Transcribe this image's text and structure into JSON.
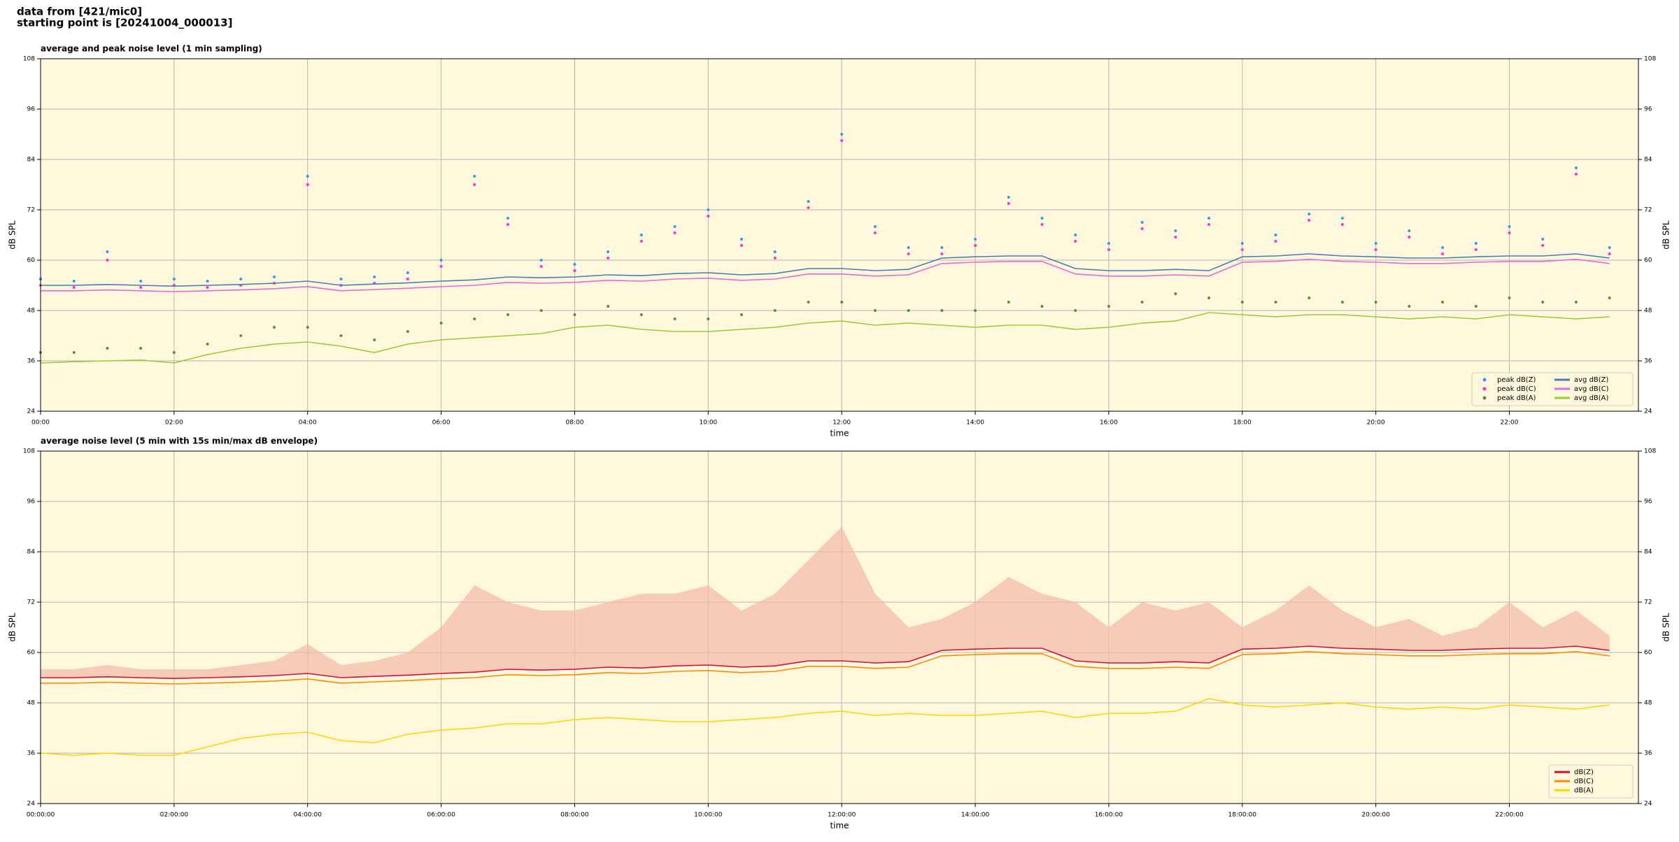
{
  "header": [
    "data from [421/mic0]",
    "starting point is [20241004_000013]"
  ],
  "chart_data": [
    {
      "type": "line",
      "title": "average and peak noise level (1 min sampling)",
      "x_label": "time",
      "y_label": "dB SPL",
      "x": [
        "00:00",
        "00:30",
        "01:00",
        "01:30",
        "02:00",
        "02:30",
        "03:00",
        "03:30",
        "04:00",
        "04:30",
        "05:00",
        "05:30",
        "06:00",
        "06:30",
        "07:00",
        "07:30",
        "08:00",
        "08:30",
        "09:00",
        "09:30",
        "10:00",
        "10:30",
        "11:00",
        "11:30",
        "12:00",
        "12:30",
        "13:00",
        "13:30",
        "14:00",
        "14:30",
        "15:00",
        "15:30",
        "16:00",
        "16:30",
        "17:00",
        "17:30",
        "18:00",
        "18:30",
        "19:00",
        "19:30",
        "20:00",
        "20:30",
        "21:00",
        "21:30",
        "22:00",
        "22:30",
        "23:00",
        "23:30"
      ],
      "xlim": [
        "00:00",
        "23:56"
      ],
      "xticks": [
        "00:00",
        "02:00",
        "04:00",
        "06:00",
        "08:00",
        "10:00",
        "12:00",
        "14:00",
        "16:00",
        "18:00",
        "20:00",
        "22:00"
      ],
      "ylim": [
        24,
        108
      ],
      "yticks": [
        24,
        36,
        48,
        60,
        72,
        84,
        96,
        108
      ],
      "grid": true,
      "legend": "lower right",
      "legend_columns": 2,
      "series": [
        {
          "name": "peak dB(Z)",
          "style": "marker",
          "color": "#3399ee",
          "values": [
            55.5,
            55,
            62,
            55,
            55.5,
            55,
            55.5,
            56,
            80,
            55.5,
            56,
            57,
            60,
            80,
            70,
            60,
            59,
            62,
            66,
            68,
            72,
            65,
            62,
            74,
            90,
            68,
            63,
            63,
            65,
            75,
            70,
            66,
            64,
            69,
            67,
            70,
            64,
            66,
            71,
            70,
            64,
            67,
            63,
            64,
            68,
            65,
            82,
            63
          ]
        },
        {
          "name": "peak dB(C)",
          "style": "marker",
          "color": "#ff33cc",
          "values": [
            54,
            53.5,
            60,
            53.5,
            54,
            53.5,
            54,
            54.5,
            78,
            54,
            54.5,
            55.5,
            58.5,
            78,
            68.5,
            58.5,
            57.5,
            60.5,
            64.5,
            66.5,
            70.5,
            63.5,
            60.5,
            72.5,
            88.5,
            66.5,
            61.5,
            61.5,
            63.5,
            73.5,
            68.5,
            64.5,
            62.5,
            67.5,
            65.5,
            68.5,
            62.5,
            64.5,
            69.5,
            68.5,
            62.5,
            65.5,
            61.5,
            62.5,
            66.5,
            63.5,
            80.5,
            61.5
          ]
        },
        {
          "name": "peak dB(A)",
          "style": "marker",
          "color": "#5e8c3a",
          "values": [
            38,
            38,
            39,
            39,
            38,
            40,
            42,
            44,
            44,
            42,
            41,
            43,
            45,
            46,
            47,
            48,
            47,
            49,
            47,
            46,
            46,
            47,
            48,
            50,
            50,
            48,
            48,
            48,
            48,
            50,
            49,
            48,
            49,
            50,
            52,
            51,
            50,
            50,
            51,
            50,
            50,
            49,
            50,
            49,
            51,
            50,
            50,
            51
          ]
        },
        {
          "name": "avg dB(Z)",
          "style": "line",
          "color": "#4a7db5",
          "values": [
            54,
            54,
            54.2,
            54,
            53.8,
            54,
            54.2,
            54.5,
            55,
            54,
            54.3,
            54.6,
            55,
            55.3,
            56,
            55.8,
            56,
            56.5,
            56.3,
            56.8,
            57,
            56.5,
            56.8,
            58,
            58,
            57.5,
            57.8,
            60.5,
            60.8,
            61,
            61,
            58,
            57.5,
            57.5,
            57.8,
            57.5,
            60.8,
            61,
            61.5,
            61,
            60.8,
            60.5,
            60.5,
            60.8,
            61,
            61,
            61.5,
            60.5
          ]
        },
        {
          "name": "avg dB(C)",
          "style": "line",
          "color": "#e86ad6",
          "values": [
            52.7,
            52.7,
            52.9,
            52.7,
            52.5,
            52.7,
            52.9,
            53.2,
            53.7,
            52.7,
            53,
            53.3,
            53.7,
            54,
            54.7,
            54.5,
            54.7,
            55.2,
            55,
            55.5,
            55.7,
            55.2,
            55.5,
            56.7,
            56.7,
            56.2,
            56.5,
            59.2,
            59.5,
            59.7,
            59.7,
            56.7,
            56.2,
            56.2,
            56.5,
            56.2,
            59.5,
            59.7,
            60.2,
            59.7,
            59.5,
            59.2,
            59.2,
            59.5,
            59.7,
            59.7,
            60.2,
            59.2
          ]
        },
        {
          "name": "avg dB(A)",
          "style": "line",
          "color": "#9acd32",
          "values": [
            35.5,
            35.8,
            36,
            36.2,
            35.5,
            37.5,
            39,
            40,
            40.5,
            39.5,
            38,
            40,
            41,
            41.5,
            42,
            42.5,
            44,
            44.5,
            43.5,
            43,
            43,
            43.5,
            44,
            45,
            45.5,
            44.5,
            45,
            44.5,
            44,
            44.5,
            44.5,
            43.5,
            44,
            45,
            45.5,
            47.5,
            47,
            46.5,
            47,
            47,
            46.5,
            46,
            46.5,
            46,
            47,
            46.5,
            46,
            46.5
          ]
        }
      ]
    },
    {
      "type": "line",
      "title": "average noise level (5 min with 15s min/max dB envelope)",
      "x_label": "time",
      "y_label": "dB SPL",
      "x": [
        "00:00:00",
        "00:30:00",
        "01:00:00",
        "01:30:00",
        "02:00:00",
        "02:30:00",
        "03:00:00",
        "03:30:00",
        "04:00:00",
        "04:30:00",
        "05:00:00",
        "05:30:00",
        "06:00:00",
        "06:30:00",
        "07:00:00",
        "07:30:00",
        "08:00:00",
        "08:30:00",
        "09:00:00",
        "09:30:00",
        "10:00:00",
        "10:30:00",
        "11:00:00",
        "11:30:00",
        "12:00:00",
        "12:30:00",
        "13:00:00",
        "13:30:00",
        "14:00:00",
        "14:30:00",
        "15:00:00",
        "15:30:00",
        "16:00:00",
        "16:30:00",
        "17:00:00",
        "17:30:00",
        "18:00:00",
        "18:30:00",
        "19:00:00",
        "19:30:00",
        "20:00:00",
        "20:30:00",
        "21:00:00",
        "21:30:00",
        "22:00:00",
        "22:30:00",
        "23:00:00",
        "23:30:00"
      ],
      "xlim": [
        "00:00:00",
        "23:56:00"
      ],
      "xticks": [
        "00:00:00",
        "02:00:00",
        "04:00:00",
        "06:00:00",
        "08:00:00",
        "10:00:00",
        "12:00:00",
        "14:00:00",
        "16:00:00",
        "18:00:00",
        "20:00:00",
        "22:00:00"
      ],
      "ylim": [
        24,
        108
      ],
      "yticks": [
        24,
        36,
        48,
        60,
        72,
        84,
        96,
        108
      ],
      "grid": true,
      "legend": "lower right",
      "legend_columns": 1,
      "envelope_color": "#f4b8a8",
      "series": [
        {
          "name": "dB(Z)",
          "style": "line",
          "color": "#d0103a",
          "values": [
            54,
            54,
            54.2,
            54,
            53.8,
            54,
            54.2,
            54.5,
            55,
            54,
            54.3,
            54.6,
            55,
            55.3,
            56,
            55.8,
            56,
            56.5,
            56.3,
            56.8,
            57,
            56.5,
            56.8,
            58,
            58,
            57.5,
            57.8,
            60.5,
            60.8,
            61,
            61,
            58,
            57.5,
            57.5,
            57.8,
            57.5,
            60.8,
            61,
            61.5,
            61,
            60.8,
            60.5,
            60.5,
            60.8,
            61,
            61,
            61.5,
            60.5
          ],
          "max": [
            56,
            56,
            57,
            56,
            56,
            56,
            57,
            58,
            62,
            57,
            58,
            60,
            66,
            76,
            72,
            70,
            70,
            72,
            74,
            74,
            76,
            70,
            74,
            82,
            90,
            74,
            66,
            68,
            72,
            78,
            74,
            72,
            66,
            72,
            70,
            72,
            66,
            70,
            76,
            70,
            66,
            68,
            64,
            66,
            72,
            66,
            70,
            64
          ]
        },
        {
          "name": "dB(C)",
          "style": "line",
          "color": "#ff8c00",
          "values": [
            52.7,
            52.7,
            52.9,
            52.7,
            52.5,
            52.7,
            52.9,
            53.2,
            53.7,
            52.7,
            53,
            53.3,
            53.7,
            54,
            54.7,
            54.5,
            54.7,
            55.2,
            55,
            55.5,
            55.7,
            55.2,
            55.5,
            56.7,
            56.7,
            56.2,
            56.5,
            59.2,
            59.5,
            59.7,
            59.7,
            56.7,
            56.2,
            56.2,
            56.5,
            56.2,
            59.5,
            59.7,
            60.2,
            59.7,
            59.5,
            59.2,
            59.2,
            59.5,
            59.7,
            59.7,
            60.2,
            59.2
          ]
        },
        {
          "name": "dB(A)",
          "style": "line",
          "color": "#ffd700",
          "values": [
            36,
            35.5,
            36,
            35.5,
            35.5,
            37.5,
            39.5,
            40.5,
            41,
            39,
            38.5,
            40.5,
            41.5,
            42,
            43,
            43,
            44,
            44.5,
            44,
            43.5,
            43.5,
            44,
            44.5,
            45.5,
            46,
            45,
            45.5,
            45,
            45,
            45.5,
            46,
            44.5,
            45.5,
            45.5,
            46,
            49,
            47.5,
            47,
            47.5,
            48,
            47,
            46.5,
            47,
            46.5,
            47.5,
            47,
            46.5,
            47.5
          ]
        }
      ]
    }
  ]
}
